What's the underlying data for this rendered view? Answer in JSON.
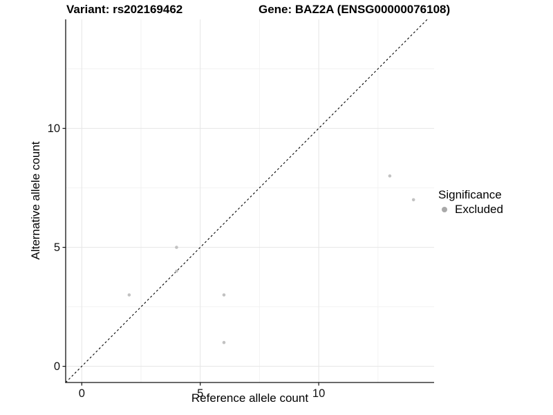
{
  "chart_data": {
    "type": "scatter",
    "title_left": "Variant: rs202169462",
    "title_right": "Gene: BAZ2A (ENSG00000076108)",
    "xlabel": "Reference allele count",
    "ylabel": "Alternative allele count",
    "xlim": [
      -0.68,
      14.87
    ],
    "ylim": [
      -0.68,
      14.58
    ],
    "x_ticks": [
      0,
      5,
      10
    ],
    "y_ticks": [
      0,
      5,
      10
    ],
    "x_minor_ticks": [
      2.5,
      7.5,
      12.5
    ],
    "y_minor_ticks": [
      2.5,
      7.5,
      12.5
    ],
    "grid": true,
    "identity_line": {
      "shown": true,
      "equation": "y = x",
      "style": "dashed"
    },
    "series": [
      {
        "name": "Excluded",
        "color": "#c2c2c2",
        "points": [
          [
            2,
            3
          ],
          [
            4,
            4
          ],
          [
            4,
            5
          ],
          [
            6,
            1
          ],
          [
            6,
            3
          ],
          [
            13,
            8
          ],
          [
            14,
            7
          ]
        ]
      }
    ],
    "legend": {
      "title": "Significance",
      "position": "right",
      "entries": [
        {
          "label": "Excluded",
          "color": "#a9a9a9"
        }
      ]
    }
  },
  "colors": {
    "background": "#ffffff",
    "grid_major": "#e5e5e5",
    "grid_minor": "#f2f2f2",
    "axis_line": "#111111",
    "tick_text": "#111111",
    "identity_line": "#000000"
  }
}
